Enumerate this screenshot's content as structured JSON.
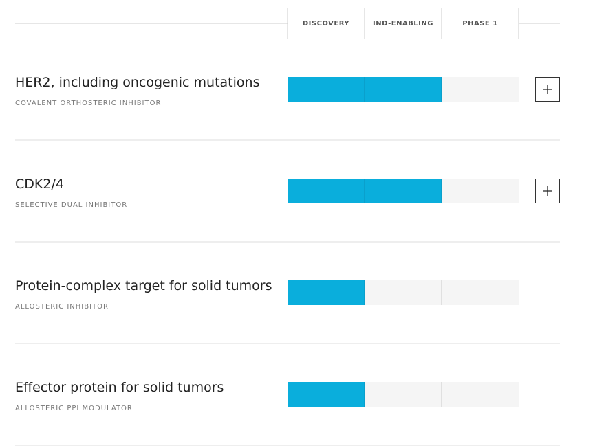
{
  "header": {
    "stages": [
      "DISCOVERY",
      "IND-ENABLING",
      "PHASE 1"
    ]
  },
  "programs": [
    {
      "name": "HER2, including oncogenic mutations",
      "modality": "COVALENT ORTHOSTERIC INHIBITOR",
      "stages_completed": 2,
      "expandable": true
    },
    {
      "name": "CDK2/4",
      "modality": "SELECTIVE DUAL INHIBITOR",
      "stages_completed": 2,
      "expandable": true
    },
    {
      "name": "Protein-complex target for solid tumors",
      "modality": "ALLOSTERIC INHIBITOR",
      "stages_completed": 1,
      "expandable": false
    },
    {
      "name": "Effector protein for solid tumors",
      "modality": "ALLOSTERIC PPI MODULATOR",
      "stages_completed": 1,
      "expandable": false
    }
  ]
}
